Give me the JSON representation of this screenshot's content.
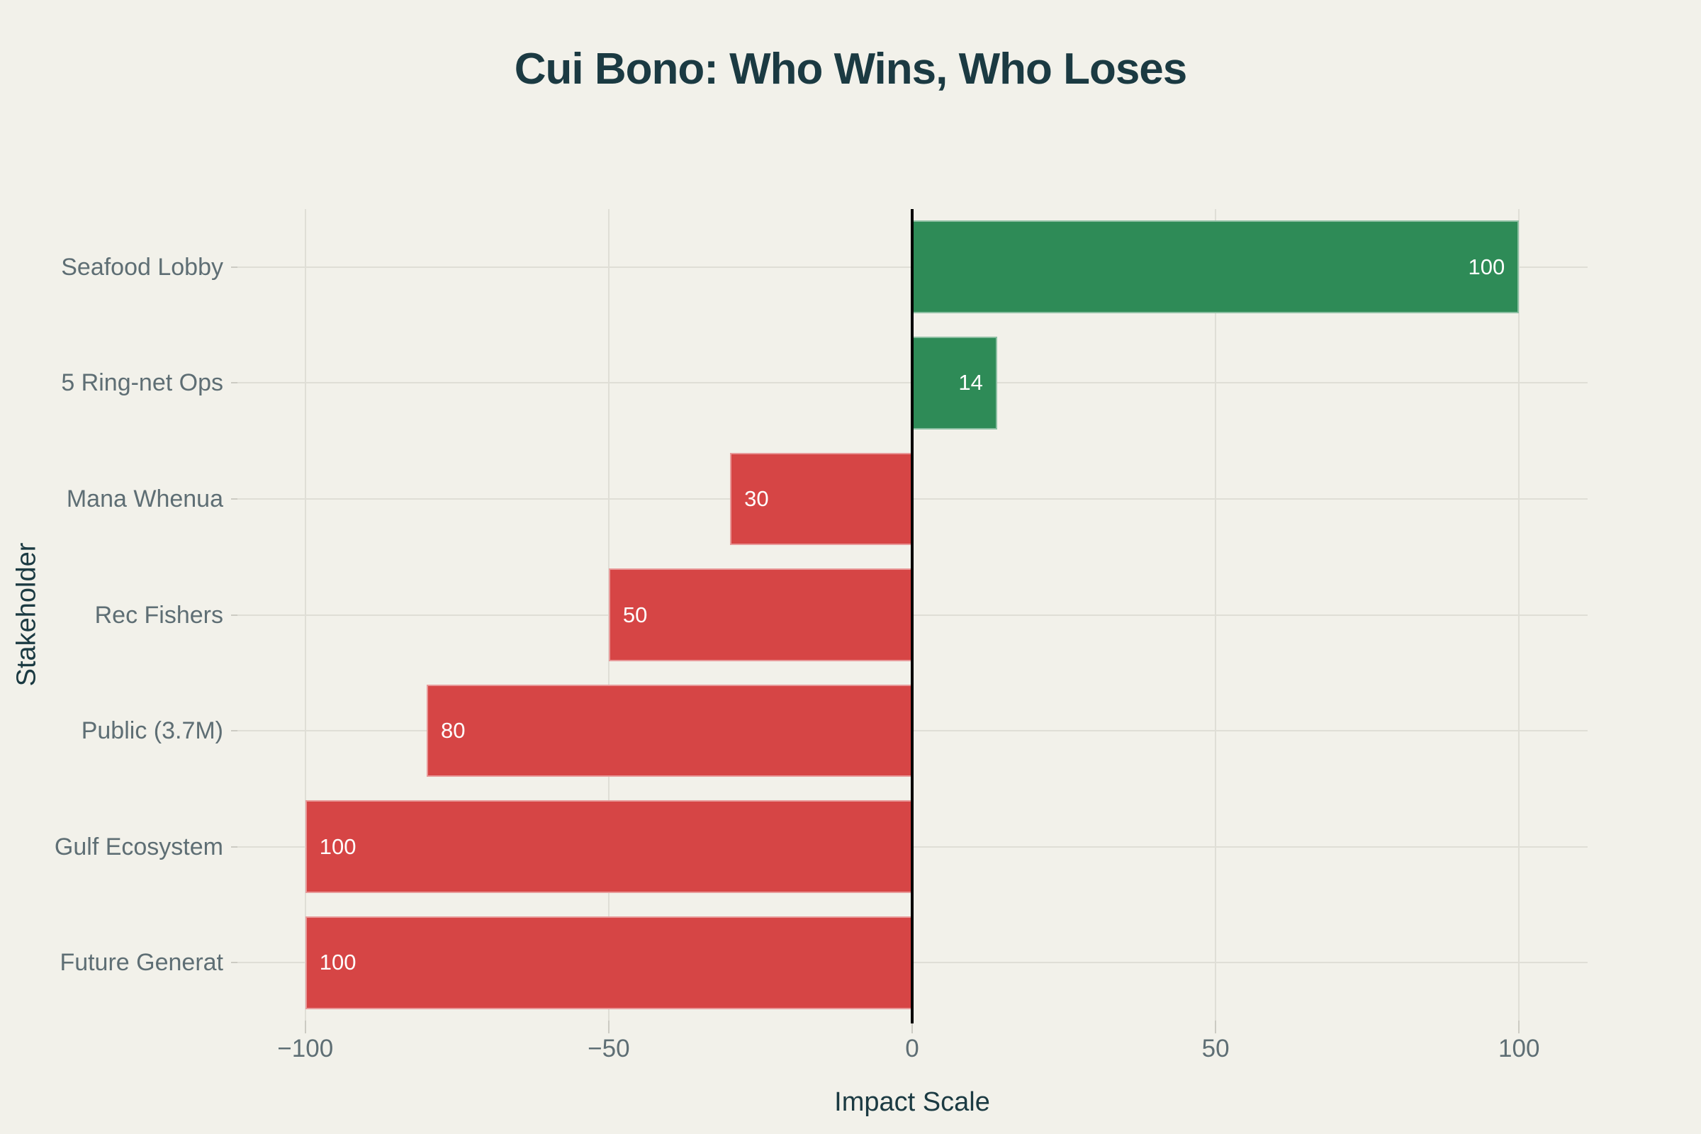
{
  "title": "Cui Bono: Who Wins, Who Loses",
  "chart_data": {
    "type": "bar",
    "orientation": "horizontal",
    "title": "Cui Bono: Who Wins, Who Loses",
    "xlabel": "Impact Scale",
    "ylabel": "Stakeholder",
    "categories": [
      "Seafood Lobby",
      "5 Ring-net Ops",
      "Mana Whenua",
      "Rec Fishers",
      "Public (3.7M)",
      "Gulf Ecosystem",
      "Future Generat"
    ],
    "values": [
      100,
      14,
      -30,
      -50,
      -80,
      -100,
      -100
    ],
    "bar_labels": [
      "100",
      "14",
      "30",
      "50",
      "80",
      "100",
      "100"
    ],
    "xlim": [
      -111.3,
      111.3
    ],
    "x_ticks": [
      -100,
      -50,
      0,
      50,
      100
    ],
    "x_tick_labels": [
      "−100",
      "−50",
      "0",
      "50",
      "100"
    ],
    "grid": true,
    "legend": "none",
    "zero_line": true
  },
  "colors": {
    "background": "#F2F1EA",
    "positive_bar": "#2E8B57",
    "negative_bar": "#D64545",
    "title_text": "#1B3A42",
    "axis_title_text": "#1B3A42",
    "tick_label_text": "#5E6E74",
    "gridline": "#DFDED6",
    "tick_mark": "#CCCBC3",
    "zero_line": "#000000",
    "bar_label_text": "#FFFFFF"
  }
}
